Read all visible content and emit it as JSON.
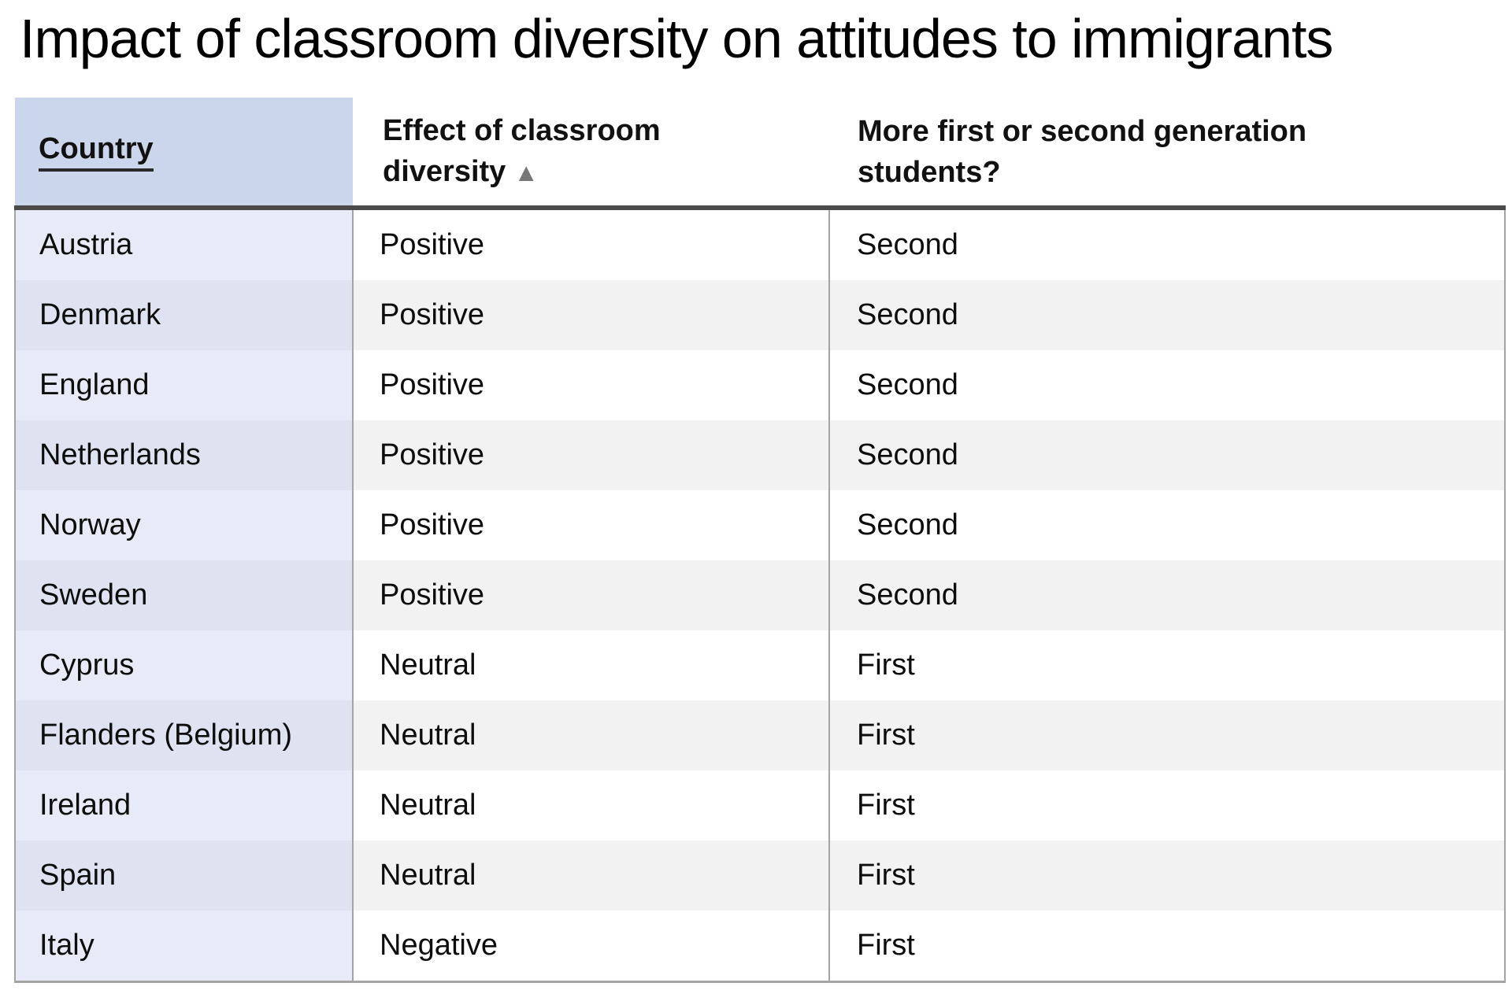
{
  "title": "Impact of classroom diversity on attitudes to immigrants",
  "chart_data": {
    "type": "table",
    "title": "Impact of classroom diversity on attitudes to immigrants",
    "columns": [
      {
        "id": "country",
        "label": "Country",
        "sortable": true,
        "underlined": true
      },
      {
        "id": "effect",
        "label": "Effect of classroom diversity",
        "sortable": true,
        "sort_icon": "▲"
      },
      {
        "id": "generation",
        "label": "More first or second generation students?",
        "sortable": true
      }
    ],
    "sort_indicator": {
      "column": "effect",
      "direction": "ascending",
      "glyph": "▲"
    },
    "rows": [
      {
        "country": "Austria",
        "effect": "Positive",
        "generation": "Second"
      },
      {
        "country": "Denmark",
        "effect": "Positive",
        "generation": "Second"
      },
      {
        "country": "England",
        "effect": "Positive",
        "generation": "Second"
      },
      {
        "country": "Netherlands",
        "effect": "Positive",
        "generation": "Second"
      },
      {
        "country": "Norway",
        "effect": "Positive",
        "generation": "Second"
      },
      {
        "country": "Sweden",
        "effect": "Positive",
        "generation": "Second"
      },
      {
        "country": "Cyprus",
        "effect": "Neutral",
        "generation": "First"
      },
      {
        "country": "Flanders (Belgium)",
        "effect": "Neutral",
        "generation": "First"
      },
      {
        "country": "Ireland",
        "effect": "Neutral",
        "generation": "First"
      },
      {
        "country": "Spain",
        "effect": "Neutral",
        "generation": "First"
      },
      {
        "country": "Italy",
        "effect": "Negative",
        "generation": "First"
      }
    ]
  },
  "colors": {
    "header_country_bg": "#cbd5ec",
    "country_col_bg_odd": "#e8ebf7",
    "country_col_bg_even": "#dfe3f1",
    "row_bg_odd": "#ffffff",
    "row_bg_even": "#f2f2f2",
    "header_divider": "#4a4a4a",
    "grid_line": "#a4a4a4",
    "sort_icon": "#777777",
    "text": "#0d0d0d"
  }
}
